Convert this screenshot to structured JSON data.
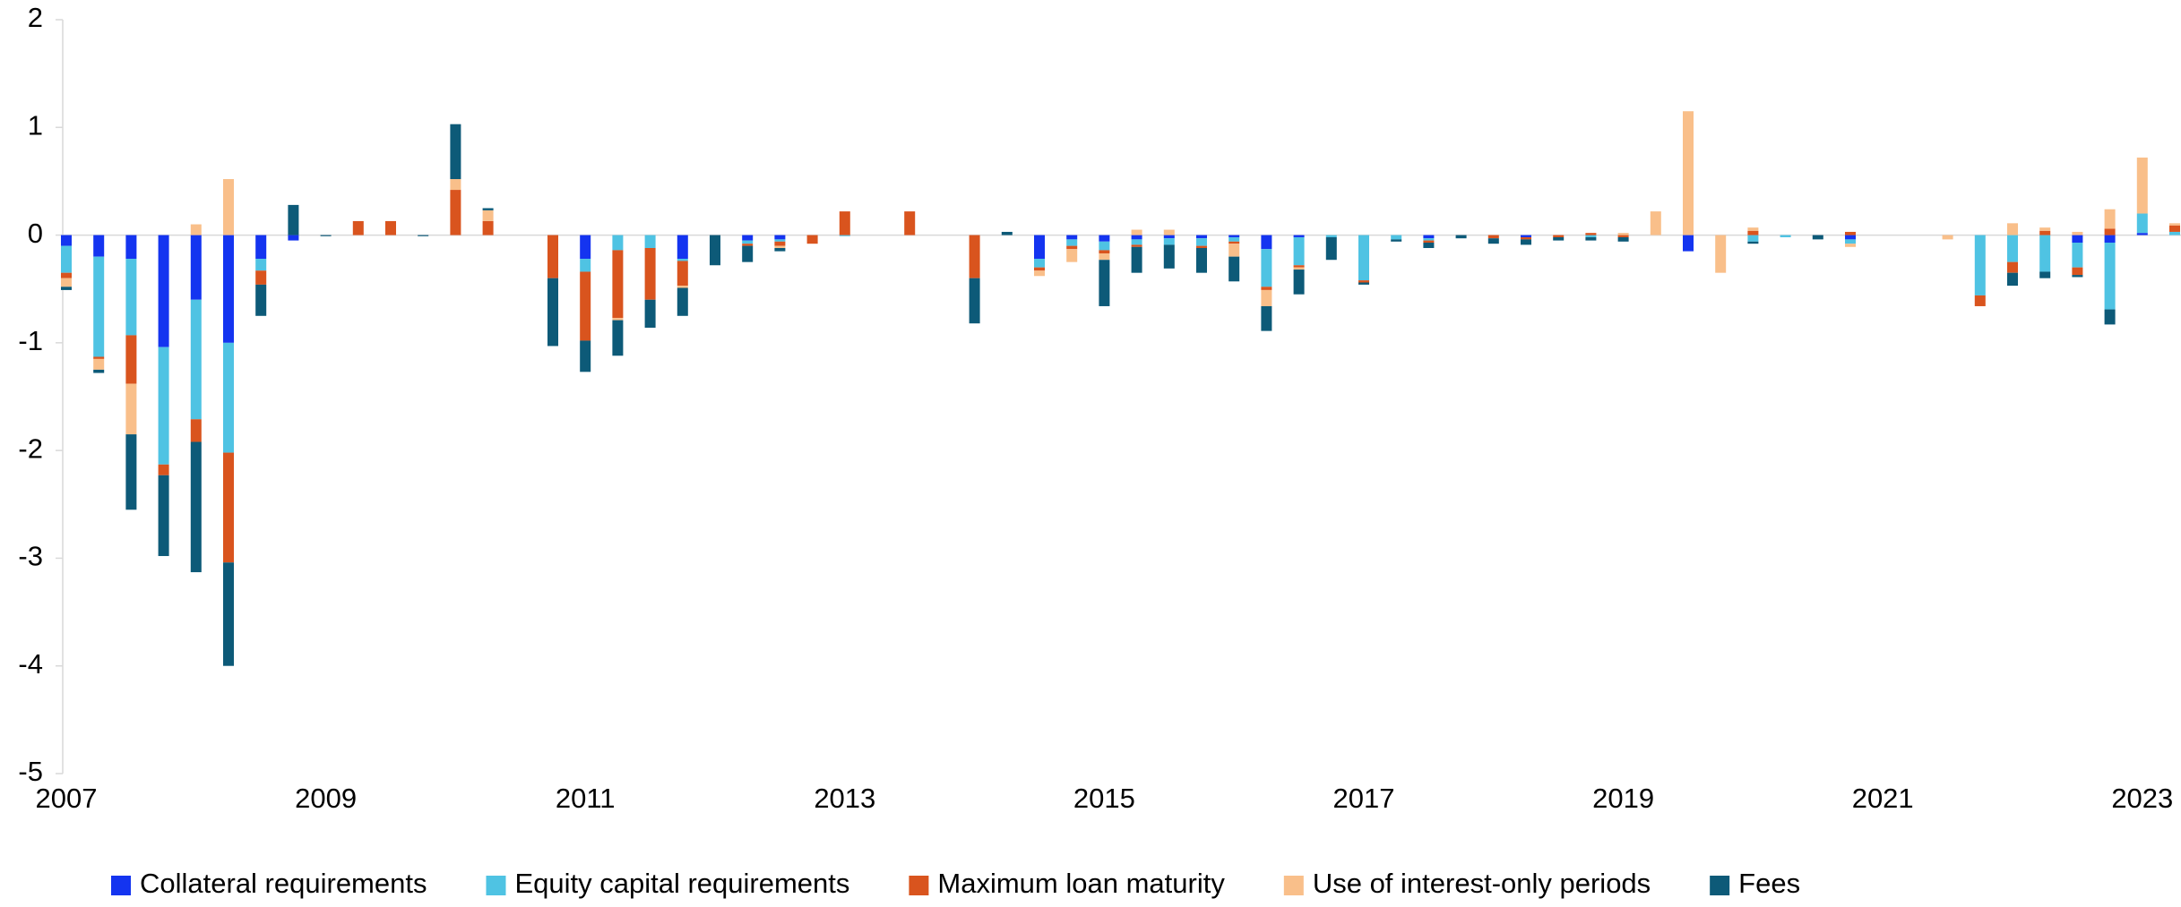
{
  "chart_data": {
    "type": "stacked_bar",
    "categories": [
      "2007",
      null,
      null,
      null,
      null,
      null,
      null,
      null,
      "2009",
      null,
      null,
      null,
      null,
      null,
      null,
      null,
      "2011",
      null,
      null,
      null,
      null,
      null,
      null,
      null,
      "2013",
      null,
      null,
      null,
      null,
      null,
      null,
      null,
      "2015",
      null,
      null,
      null,
      null,
      null,
      null,
      null,
      "2017",
      null,
      null,
      null,
      null,
      null,
      null,
      null,
      "2019",
      null,
      null,
      null,
      null,
      null,
      null,
      null,
      "2021",
      null,
      null,
      null,
      null,
      null,
      null,
      null,
      "2023",
      null
    ],
    "series": [
      {
        "name": "Collateral requirements",
        "color": "#1434f0",
        "values": [
          -0.1,
          -0.2,
          -0.22,
          -1.04,
          -0.6,
          -1.0,
          -0.22,
          -0.05,
          0,
          0,
          0,
          0,
          0,
          0,
          0,
          0,
          -0.22,
          0,
          0,
          -0.22,
          0,
          -0.05,
          -0.04,
          0,
          0,
          0,
          0,
          0,
          0,
          0,
          -0.22,
          -0.04,
          -0.06,
          -0.04,
          -0.03,
          -0.03,
          -0.02,
          -0.13,
          -0.02,
          0,
          0,
          0,
          -0.03,
          0,
          0,
          -0.02,
          0,
          0,
          0,
          0,
          -0.15,
          0,
          0,
          0,
          0,
          -0.04,
          0,
          0,
          0,
          0,
          0,
          0,
          -0.07,
          -0.07,
          0.02,
          0
        ]
      },
      {
        "name": "Equity capital requirements",
        "color": "#4fc3e3",
        "values": [
          -0.25,
          -0.93,
          -0.71,
          -1.09,
          -1.11,
          -1.02,
          -0.11,
          0,
          0,
          0,
          0,
          0,
          0,
          0,
          0,
          0,
          -0.12,
          -0.14,
          -0.12,
          -0.02,
          0,
          -0.03,
          -0.02,
          0,
          -0.01,
          0,
          0,
          0,
          0,
          0,
          -0.08,
          -0.06,
          -0.08,
          -0.05,
          -0.06,
          -0.07,
          -0.04,
          -0.35,
          -0.26,
          -0.02,
          -0.42,
          -0.04,
          -0.02,
          0,
          0,
          0,
          0,
          -0.02,
          0,
          0,
          0,
          0,
          -0.06,
          -0.02,
          0,
          -0.04,
          0,
          0,
          0,
          -0.56,
          -0.25,
          -0.34,
          -0.23,
          -0.62,
          0.18,
          0.03
        ]
      },
      {
        "name": "Maximum loan maturity",
        "color": "#d9541e",
        "values": [
          -0.05,
          -0.02,
          -0.45,
          -0.1,
          -0.21,
          -1.02,
          -0.13,
          0,
          0,
          0.13,
          0.13,
          0,
          0.42,
          0.13,
          0,
          -0.4,
          -0.64,
          -0.63,
          -0.48,
          -0.23,
          0,
          -0.02,
          -0.04,
          -0.08,
          0.22,
          0,
          0.22,
          0,
          -0.4,
          0,
          -0.03,
          -0.03,
          -0.03,
          -0.02,
          0,
          -0.02,
          -0.02,
          -0.03,
          -0.02,
          0,
          -0.02,
          0,
          -0.02,
          0,
          -0.03,
          -0.02,
          -0.02,
          0.02,
          -0.02,
          0,
          0,
          0,
          0.04,
          0,
          0,
          0.03,
          0,
          0,
          0,
          -0.1,
          -0.1,
          0.04,
          -0.07,
          0.06,
          0,
          0.06
        ]
      },
      {
        "name": "Use of interest-only periods",
        "color": "#f9bf8a",
        "values": [
          -0.08,
          -0.1,
          -0.47,
          0,
          0.1,
          0.52,
          0,
          0,
          0,
          0,
          0,
          0,
          0.1,
          0.1,
          0,
          0,
          0,
          -0.02,
          0,
          -0.02,
          0,
          0,
          -0.02,
          0,
          0,
          0,
          0,
          0,
          0,
          0,
          -0.05,
          -0.12,
          -0.06,
          0.05,
          0.05,
          0,
          -0.12,
          -0.15,
          -0.02,
          0,
          0,
          0,
          0,
          0,
          0,
          0,
          0,
          0,
          0.02,
          0.22,
          1.15,
          -0.35,
          0.03,
          0,
          0,
          -0.03,
          0,
          0,
          -0.04,
          0,
          0.11,
          0.03,
          0.03,
          0.18,
          0.52,
          0.02
        ]
      },
      {
        "name": "Fees",
        "color": "#0d5a78",
        "values": [
          -0.03,
          -0.03,
          -0.7,
          -0.75,
          -1.21,
          -0.96,
          -0.29,
          0.28,
          -0.01,
          0,
          0,
          -0.01,
          0.51,
          0.02,
          0,
          -0.63,
          -0.29,
          -0.33,
          -0.26,
          -0.26,
          -0.28,
          -0.15,
          -0.03,
          0,
          0,
          0,
          0,
          0,
          -0.42,
          0.03,
          0,
          0,
          -0.43,
          -0.24,
          -0.22,
          -0.23,
          -0.23,
          -0.23,
          -0.23,
          -0.21,
          -0.02,
          -0.02,
          -0.05,
          -0.03,
          -0.05,
          -0.05,
          -0.03,
          -0.03,
          -0.04,
          0,
          0,
          0,
          -0.02,
          0,
          -0.04,
          0,
          0,
          0,
          0,
          0,
          -0.12,
          -0.06,
          -0.02,
          -0.14,
          0,
          0
        ]
      }
    ],
    "ylim": [
      -5,
      2
    ],
    "yticks": [
      -5,
      -4,
      -3,
      -2,
      -1,
      0,
      1,
      2
    ],
    "legend": "bottom"
  }
}
